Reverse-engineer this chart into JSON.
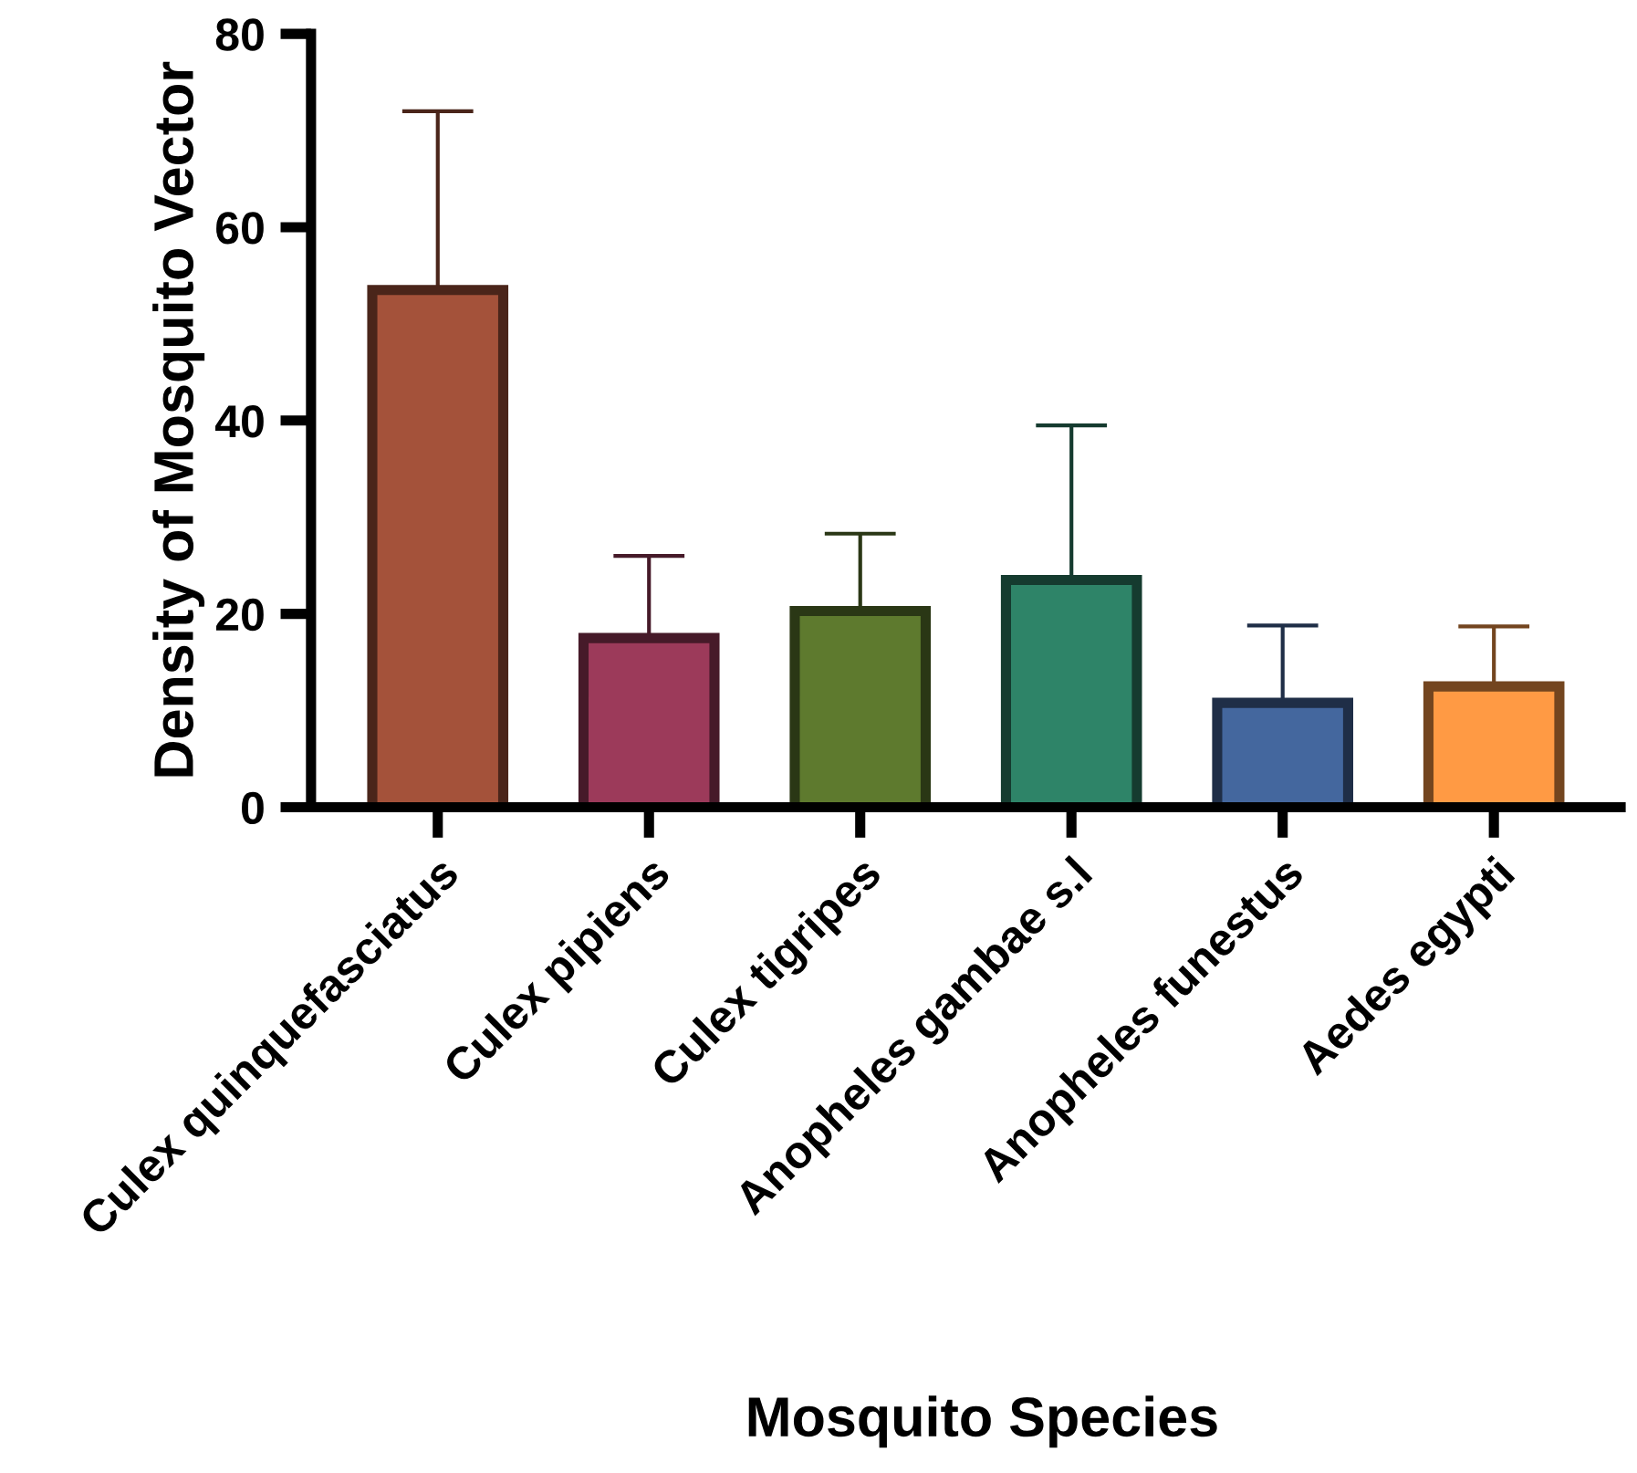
{
  "chart_data": {
    "type": "bar",
    "xlabel": "Mosquito Species",
    "ylabel": "Density of Mosquito Vector",
    "categories": [
      "Culex quinquefasciatus",
      "Culex pipiens",
      "Culex tigripes",
      "Anopheles gambae s.l",
      "Anopheles funestus",
      "Aedes egypti"
    ],
    "values": [
      53.5,
      17.5,
      20.3,
      23.5,
      10.8,
      12.5
    ],
    "errors": [
      [
        53.5,
        72.0
      ],
      [
        17.5,
        26.0
      ],
      [
        20.3,
        28.3
      ],
      [
        23.5,
        39.5
      ],
      [
        10.8,
        18.8
      ],
      [
        12.5,
        18.7
      ]
    ],
    "colors": [
      "#a4523a",
      "#9c3a5a",
      "#5e7a2e",
      "#2e8468",
      "#44679e",
      "#ff9a44"
    ],
    "ylim": [
      0,
      80
    ],
    "yticks": [
      0,
      20,
      40,
      60,
      80
    ],
    "grid": false
  }
}
